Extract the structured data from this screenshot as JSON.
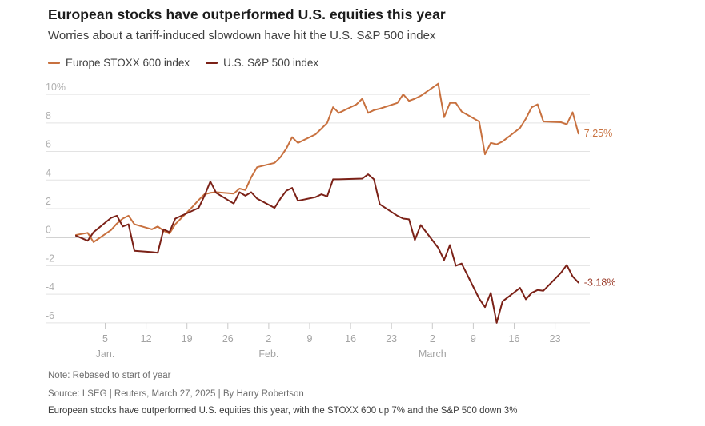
{
  "header": {
    "title": "European stocks have outperformed U.S. equities this year",
    "subtitle": "Worries about a tariff-induced slowdown have hit the U.S. S&P 500 index"
  },
  "legend": [
    {
      "label": "Europe STOXX 600 index",
      "color": "#c8713f"
    },
    {
      "label": "U.S. S&P 500 index",
      "color": "#7b2117"
    }
  ],
  "footer": {
    "note": "Note: Rebased to start of year",
    "source": "Source: LSEG | Reuters, March 27, 2025 | By Harry Robertson",
    "caption": "European stocks have outperformed U.S. equities this year, with the STOXX 600 up 7% and the S&P 500 down 3%"
  },
  "chart_data": {
    "type": "line",
    "title": "European stocks have outperformed U.S. equities this year",
    "unit": "percent change, rebased to start of year",
    "grid": true,
    "legend_position": "top-left",
    "colors": {
      "gridline": "#e3e3e3",
      "zero_line": "#4a4a4a",
      "axis_text": "#b0b0b0",
      "tick_mark": "#c9c9c9"
    },
    "y_axis": {
      "range": [
        -6.9,
        10.9
      ],
      "ticks": [
        {
          "v": 10,
          "label": "10%"
        },
        {
          "v": 8,
          "label": "8"
        },
        {
          "v": 6,
          "label": "6"
        },
        {
          "v": 4,
          "label": "4"
        },
        {
          "v": 2,
          "label": "2"
        },
        {
          "v": 0,
          "label": "0"
        },
        {
          "v": -2,
          "label": "-2"
        },
        {
          "v": -4,
          "label": "-4"
        },
        {
          "v": -6,
          "label": "-6"
        }
      ]
    },
    "x_axis": {
      "start": "12-31",
      "end": "03-27",
      "ticks": [
        {
          "d": "01-05",
          "label": "5"
        },
        {
          "d": "01-12",
          "label": "12"
        },
        {
          "d": "01-19",
          "label": "19"
        },
        {
          "d": "01-26",
          "label": "26"
        },
        {
          "d": "02-02",
          "label": "2"
        },
        {
          "d": "02-09",
          "label": "9"
        },
        {
          "d": "02-16",
          "label": "16"
        },
        {
          "d": "02-23",
          "label": "23"
        },
        {
          "d": "03-02",
          "label": "2"
        },
        {
          "d": "03-09",
          "label": "9"
        },
        {
          "d": "03-16",
          "label": "16"
        },
        {
          "d": "03-23",
          "label": "23"
        }
      ],
      "month_labels": [
        {
          "d": "01-05",
          "label": "Jan."
        },
        {
          "d": "02-02",
          "label": "Feb."
        },
        {
          "d": "03-02",
          "label": "March"
        }
      ]
    },
    "series": [
      {
        "name": "Europe STOXX 600 index",
        "color": "#c8713f",
        "end_label": "7.25%",
        "end_label_color": "#c87240",
        "points": [
          [
            "12-31",
            0.15
          ],
          [
            "01-02",
            0.3
          ],
          [
            "01-03",
            -0.35
          ],
          [
            "01-06",
            0.5
          ],
          [
            "01-07",
            0.95
          ],
          [
            "01-08",
            1.3
          ],
          [
            "01-09",
            1.5
          ],
          [
            "01-10",
            0.9
          ],
          [
            "01-13",
            0.55
          ],
          [
            "01-14",
            0.75
          ],
          [
            "01-15",
            0.45
          ],
          [
            "01-16",
            0.25
          ],
          [
            "01-17",
            0.9
          ],
          [
            "01-20",
            2.15
          ],
          [
            "01-21",
            2.6
          ],
          [
            "01-22",
            3.0
          ],
          [
            "01-23",
            3.1
          ],
          [
            "01-24",
            3.15
          ],
          [
            "01-27",
            3.05
          ],
          [
            "01-28",
            3.4
          ],
          [
            "01-29",
            3.3
          ],
          [
            "01-30",
            4.2
          ],
          [
            "01-31",
            4.9
          ],
          [
            "02-03",
            5.2
          ],
          [
            "02-04",
            5.6
          ],
          [
            "02-05",
            6.2
          ],
          [
            "02-06",
            7.0
          ],
          [
            "02-07",
            6.6
          ],
          [
            "02-10",
            7.2
          ],
          [
            "02-11",
            7.6
          ],
          [
            "02-12",
            8.0
          ],
          [
            "02-13",
            9.1
          ],
          [
            "02-14",
            8.7
          ],
          [
            "02-17",
            9.3
          ],
          [
            "02-18",
            9.7
          ],
          [
            "02-19",
            8.7
          ],
          [
            "02-20",
            8.9
          ],
          [
            "02-21",
            9.0
          ],
          [
            "02-24",
            9.4
          ],
          [
            "02-25",
            10.0
          ],
          [
            "02-26",
            9.55
          ],
          [
            "02-27",
            9.7
          ],
          [
            "02-28",
            9.9
          ],
          [
            "03-03",
            10.75
          ],
          [
            "03-04",
            8.4
          ],
          [
            "03-05",
            9.4
          ],
          [
            "03-06",
            9.4
          ],
          [
            "03-07",
            8.8
          ],
          [
            "03-10",
            8.1
          ],
          [
            "03-11",
            5.8
          ],
          [
            "03-12",
            6.6
          ],
          [
            "03-13",
            6.5
          ],
          [
            "03-14",
            6.7
          ],
          [
            "03-17",
            7.65
          ],
          [
            "03-18",
            8.3
          ],
          [
            "03-19",
            9.1
          ],
          [
            "03-20",
            9.3
          ],
          [
            "03-21",
            8.1
          ],
          [
            "03-24",
            8.05
          ],
          [
            "03-25",
            7.9
          ],
          [
            "03-26",
            8.75
          ],
          [
            "03-27",
            7.25
          ]
        ]
      },
      {
        "name": "U.S. S&P 500 index",
        "color": "#7b2117",
        "end_label": "-3.18%",
        "end_label_color": "#9a3a28",
        "points": [
          [
            "12-31",
            0.1
          ],
          [
            "01-02",
            -0.25
          ],
          [
            "01-03",
            0.35
          ],
          [
            "01-06",
            1.35
          ],
          [
            "01-07",
            1.5
          ],
          [
            "01-08",
            0.75
          ],
          [
            "01-09",
            0.9
          ],
          [
            "01-10",
            -0.95
          ],
          [
            "01-13",
            -1.05
          ],
          [
            "01-14",
            -1.1
          ],
          [
            "01-15",
            0.55
          ],
          [
            "01-16",
            0.35
          ],
          [
            "01-17",
            1.3
          ],
          [
            "01-21",
            2.05
          ],
          [
            "01-22",
            2.9
          ],
          [
            "01-23",
            3.9
          ],
          [
            "01-24",
            3.1
          ],
          [
            "01-27",
            2.35
          ],
          [
            "01-28",
            3.15
          ],
          [
            "01-29",
            2.9
          ],
          [
            "01-30",
            3.15
          ],
          [
            "01-31",
            2.7
          ],
          [
            "02-03",
            2.05
          ],
          [
            "02-04",
            2.7
          ],
          [
            "02-05",
            3.25
          ],
          [
            "02-06",
            3.45
          ],
          [
            "02-07",
            2.55
          ],
          [
            "02-10",
            2.8
          ],
          [
            "02-11",
            3.0
          ],
          [
            "02-12",
            2.85
          ],
          [
            "02-13",
            4.05
          ],
          [
            "02-14",
            4.05
          ],
          [
            "02-18",
            4.1
          ],
          [
            "02-19",
            4.4
          ],
          [
            "02-20",
            4.05
          ],
          [
            "02-21",
            2.3
          ],
          [
            "02-24",
            1.5
          ],
          [
            "02-25",
            1.3
          ],
          [
            "02-26",
            1.25
          ],
          [
            "02-27",
            -0.2
          ],
          [
            "02-28",
            0.85
          ],
          [
            "03-03",
            -0.75
          ],
          [
            "03-04",
            -1.6
          ],
          [
            "03-05",
            -0.55
          ],
          [
            "03-06",
            -2.0
          ],
          [
            "03-07",
            -1.85
          ],
          [
            "03-10",
            -4.3
          ],
          [
            "03-11",
            -4.9
          ],
          [
            "03-12",
            -3.9
          ],
          [
            "03-13",
            -6.0
          ],
          [
            "03-14",
            -4.5
          ],
          [
            "03-17",
            -3.55
          ],
          [
            "03-18",
            -4.35
          ],
          [
            "03-19",
            -3.9
          ],
          [
            "03-20",
            -3.7
          ],
          [
            "03-21",
            -3.75
          ],
          [
            "03-24",
            -2.5
          ],
          [
            "03-25",
            -1.95
          ],
          [
            "03-26",
            -2.75
          ],
          [
            "03-27",
            -3.18
          ]
        ]
      }
    ]
  }
}
